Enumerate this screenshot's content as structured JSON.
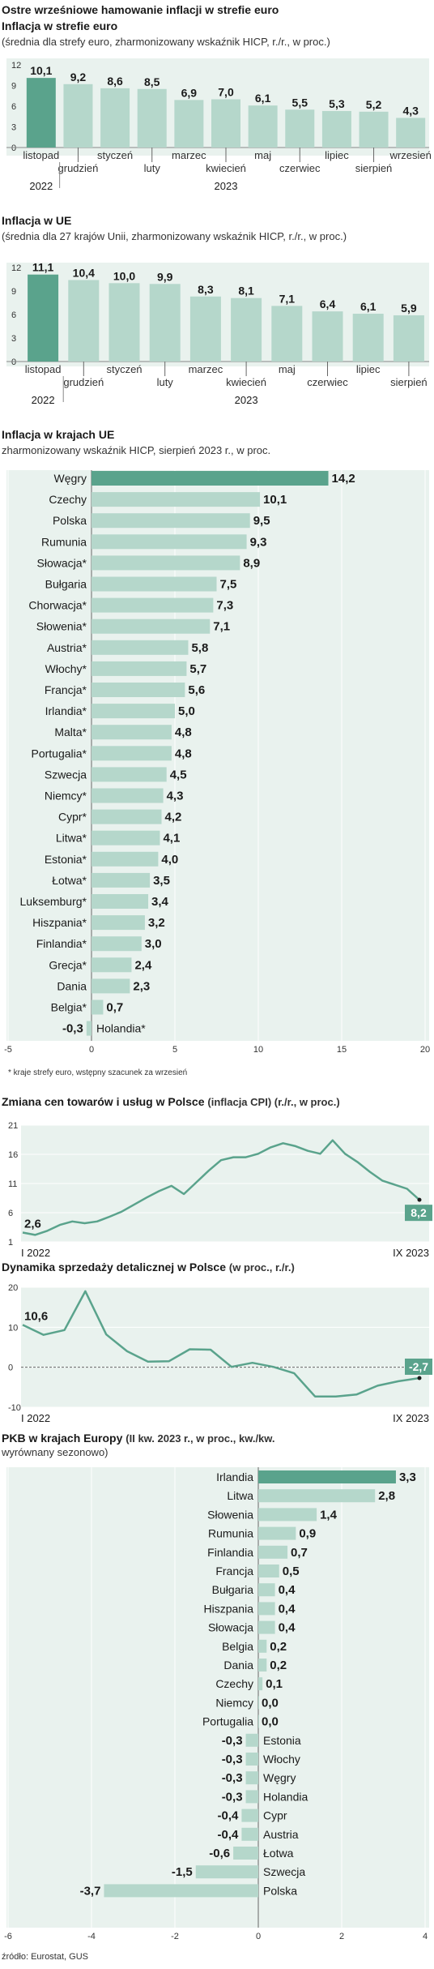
{
  "main_title": "Ostre wrześniowe hamowanie inflacji w strefie euro",
  "colors": {
    "accent": "#5aa38c",
    "bar": "#b5d7cb",
    "panel": "#e9f2ee",
    "line": "#5aa38c",
    "label_bg": "#5aa38c",
    "grid": "#c8c8c8"
  },
  "chart_data": [
    {
      "type": "bar",
      "title": "Inflacja w strefie euro",
      "subtitle": "(średnia dla strefy euro, zharmonizowany wskaźnik HICP, r./r., w proc.)",
      "categories": [
        "listopad",
        "grudzień",
        "styczeń",
        "luty",
        "marzec",
        "kwiecień",
        "maj",
        "czerwiec",
        "lipiec",
        "sierpień",
        "wrzesień"
      ],
      "values": [
        10.1,
        9.2,
        8.6,
        8.5,
        6.9,
        7.0,
        6.1,
        5.5,
        5.3,
        5.2,
        4.3
      ],
      "value_labels": [
        "10,1",
        "9,2",
        "8,6",
        "8,5",
        "6,9",
        "7,0",
        "6,1",
        "5,5",
        "5,3",
        "5,2",
        "4,3"
      ],
      "highlight_index": 0,
      "yticks": [
        "12",
        "9",
        "6",
        "3",
        "0"
      ],
      "ylim": [
        0,
        12
      ],
      "years": [
        "2022",
        "2023"
      ]
    },
    {
      "type": "bar",
      "title": "Inflacja w UE",
      "subtitle": "(średnia dla 27 krajów Unii, zharmonizowany wskaźnik HICP, r./r., w proc.)",
      "categories": [
        "listopad",
        "grudzień",
        "styczeń",
        "luty",
        "marzec",
        "kwiecień",
        "maj",
        "czerwiec",
        "lipiec",
        "sierpień"
      ],
      "values": [
        11.1,
        10.4,
        10.0,
        9.9,
        8.3,
        8.1,
        7.1,
        6.4,
        6.1,
        5.9
      ],
      "value_labels": [
        "11,1",
        "10,4",
        "10,0",
        "9,9",
        "8,3",
        "8,1",
        "7,1",
        "6,4",
        "6,1",
        "5,9"
      ],
      "highlight_index": 0,
      "yticks": [
        "12",
        "9",
        "6",
        "3",
        "0"
      ],
      "ylim": [
        0,
        12
      ],
      "years": [
        "2022",
        "2023"
      ]
    },
    {
      "type": "bar",
      "orientation": "horizontal",
      "title": "Inflacja w krajach UE",
      "subtitle": "zharmonizowany wskaźnik HICP, sierpień 2023 r., w proc.",
      "categories": [
        "Węgry",
        "Czechy",
        "Polska",
        "Rumunia",
        "Słowacja*",
        "Bułgaria",
        "Chorwacja*",
        "Słowenia*",
        "Austria*",
        "Włochy*",
        "Francja*",
        "Irlandia*",
        "Malta*",
        "Portugalia*",
        "Szwecja",
        "Niemcy*",
        "Cypr*",
        "Litwa*",
        "Estonia*",
        "Łotwa*",
        "Luksemburg*",
        "Hiszpania*",
        "Finlandia*",
        "Grecja*",
        "Dania",
        "Belgia*",
        "Holandia*"
      ],
      "values": [
        14.2,
        10.1,
        9.5,
        9.3,
        8.9,
        7.5,
        7.3,
        7.1,
        5.8,
        5.7,
        5.6,
        5.0,
        4.8,
        4.8,
        4.5,
        4.3,
        4.2,
        4.1,
        4.0,
        3.5,
        3.4,
        3.2,
        3.0,
        2.4,
        2.3,
        0.7,
        -0.3
      ],
      "value_labels": [
        "14,2",
        "10,1",
        "9,5",
        "9,3",
        "8,9",
        "7,5",
        "7,3",
        "7,1",
        "5,8",
        "5,7",
        "5,6",
        "5,0",
        "4,8",
        "4,8",
        "4,5",
        "4,3",
        "4,2",
        "4,1",
        "4,0",
        "3,5",
        "3,4",
        "3,2",
        "3,0",
        "2,4",
        "2,3",
        "0,7",
        "-0,3"
      ],
      "highlight_index": 0,
      "xticks": [
        "-5",
        "0",
        "5",
        "10",
        "15",
        "20"
      ],
      "xlim": [
        -5,
        20
      ],
      "footnote": "* kraje strefy euro, wstępny szacunek za wrzesień"
    },
    {
      "type": "line",
      "title": "Zmiana cen towarów i usług w Polsce",
      "subtitle": "(inflacja CPI) (r./r., w proc.)",
      "x_start": "I 2022",
      "x_end": "IX 2023",
      "values": [
        2.6,
        2.2,
        2.9,
        3.9,
        4.5,
        4.2,
        4.5,
        5.3,
        6.2,
        7.4,
        8.6,
        9.7,
        10.6,
        9.2,
        11.2,
        13.2,
        15.0,
        15.5,
        15.5,
        16.1,
        17.2,
        17.9,
        17.4,
        16.6,
        16.1,
        18.4,
        16.1,
        14.7,
        13.0,
        11.5,
        10.8,
        10.1,
        8.2
      ],
      "start_label": "2,6",
      "end_label": "8,2",
      "yticks": [
        "21",
        "16",
        "11",
        "6",
        "1"
      ],
      "ylim": [
        1,
        21
      ]
    },
    {
      "type": "line",
      "title": "Dynamika sprzedaży detalicznej w Polsce",
      "subtitle": "(w proc., r./r.)",
      "x_start": "I 2022",
      "x_end": "IX 2023",
      "values": [
        10.6,
        8.1,
        9.3,
        19.0,
        8.2,
        4.0,
        1.4,
        1.5,
        4.5,
        4.4,
        0.1,
        1.1,
        0.1,
        -1.5,
        -7.3,
        -7.3,
        -6.8,
        -4.6,
        -3.5,
        -2.7
      ],
      "start_label": "10,6",
      "end_label": "-2,7",
      "yticks": [
        "20",
        "10",
        "0",
        "-10"
      ],
      "ylim": [
        -10,
        20
      ]
    },
    {
      "type": "bar",
      "orientation": "horizontal",
      "title": "PKB w krajach Europy",
      "subtitle_line1": "(II kw. 2023 r., w proc., kw./kw.",
      "subtitle_line2": "wyrównany sezonowo)",
      "categories": [
        "Irlandia",
        "Litwa",
        "Słowenia",
        "Rumunia",
        "Finlandia",
        "Francja",
        "Bułgaria",
        "Hiszpania",
        "Słowacja",
        "Belgia",
        "Dania",
        "Czechy",
        "Niemcy",
        "Portugalia",
        "Estonia",
        "Włochy",
        "Węgry",
        "Holandia",
        "Cypr",
        "Austria",
        "Łotwa",
        "Szwecja",
        "Polska"
      ],
      "values": [
        3.3,
        2.8,
        1.4,
        0.9,
        0.7,
        0.5,
        0.4,
        0.4,
        0.4,
        0.2,
        0.2,
        0.1,
        0.0,
        0.0,
        -0.3,
        -0.3,
        -0.3,
        -0.3,
        -0.4,
        -0.4,
        -0.6,
        -1.5,
        -3.7
      ],
      "value_labels": [
        "3,3",
        "2,8",
        "1,4",
        "0,9",
        "0,7",
        "0,5",
        "0,4",
        "0,4",
        "0,4",
        "0,2",
        "0,2",
        "0,1",
        "0,0",
        "0,0",
        "-0,3",
        "-0,3",
        "-0,3",
        "-0,3",
        "-0,4",
        "-0,4",
        "-0,6",
        "-1,5",
        "-3,7"
      ],
      "highlight_index": 0,
      "xticks": [
        "-6",
        "-4",
        "-2",
        "0",
        "2",
        "4"
      ],
      "xlim": [
        -6,
        4
      ]
    }
  ],
  "source": "źródło: Eurostat, GUS"
}
